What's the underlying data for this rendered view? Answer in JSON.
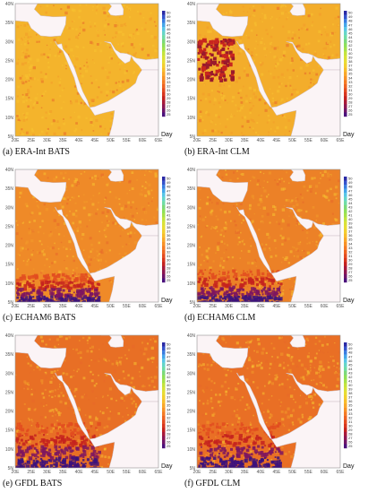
{
  "colorbar": {
    "labels": [
      "50",
      "49",
      "48",
      "47",
      "46",
      "45",
      "44",
      "43",
      "42",
      "41",
      "40",
      "39",
      "38",
      "37",
      "36",
      "35",
      "34",
      "33",
      "32",
      "31",
      "30",
      "29",
      "28",
      "27",
      "26",
      "25"
    ],
    "colors": [
      "#2b2ba6",
      "#3553cc",
      "#3a7de0",
      "#45a6ea",
      "#58c6e6",
      "#66d6c8",
      "#6fdca6",
      "#7cd97c",
      "#8ee05a",
      "#a6e24a",
      "#c4e43e",
      "#d9e238",
      "#e8dc34",
      "#f2cf2f",
      "#f7bd2b",
      "#f8a928",
      "#f79326",
      "#f47c24",
      "#ee6422",
      "#e44c20",
      "#d8361e",
      "#c4221f",
      "#a81a3a",
      "#8c1752",
      "#6f1568",
      "#4b127c"
    ],
    "unit": "Day"
  },
  "axes": {
    "x_ticks": [
      "20E",
      "25E",
      "30E",
      "35E",
      "40E",
      "45E",
      "50E",
      "55E",
      "60E",
      "65E"
    ],
    "y_ticks": [
      "40N",
      "35N",
      "30N",
      "25N",
      "20N",
      "15N",
      "10N",
      "5N"
    ]
  },
  "panels": [
    {
      "id": "a",
      "caption": "(a)  ERA-Int BATS",
      "tone": "#f4b42c",
      "dark": 0.05
    },
    {
      "id": "b",
      "caption": "(b)  ERA-Int CLM",
      "tone": "#f3ad2b",
      "dark": 0.1
    },
    {
      "id": "c",
      "caption": "(c)  ECHAM6 BATS",
      "tone": "#ef8a28",
      "dark": 0.35
    },
    {
      "id": "d",
      "caption": "(d)  ECHAM6 CLM",
      "tone": "#ec8127",
      "dark": 0.4
    },
    {
      "id": "e",
      "caption": "(e)  GFDL BATS",
      "tone": "#e86f25",
      "dark": 0.55
    },
    {
      "id": "f",
      "caption": "(f)  GFDL CLM",
      "tone": "#e96f25",
      "dark": 0.55
    }
  ]
}
